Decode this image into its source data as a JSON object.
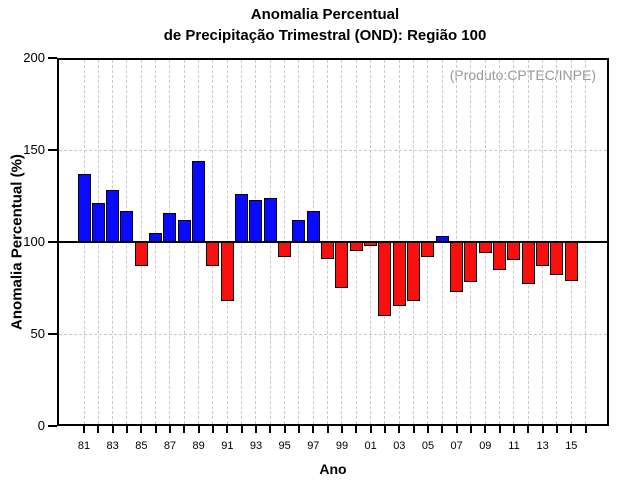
{
  "header": {
    "title_line1": "Anomalia Percentual",
    "title_line2": "de Precipitação Trimestral (OND): Região 100"
  },
  "chart_data": {
    "type": "bar",
    "title": "Anomalia Percentual de Precipitação Trimestral (OND): Região 100",
    "xlabel": "Ano",
    "ylabel": "Anomalia Percentual (%)",
    "annotation": "(Produto:CPTEC/INPE)",
    "ylim": [
      0,
      200
    ],
    "yticks": [
      0,
      50,
      100,
      150,
      200
    ],
    "baseline": 100,
    "dashed_gridlines_y": [
      50,
      150
    ],
    "grid": "dashed vertical line every year, dashed horizontal at 50 and 150, solid line at 100",
    "legend_position": "none",
    "x_label_step": 2,
    "categories": [
      "81",
      "82",
      "83",
      "84",
      "85",
      "86",
      "87",
      "88",
      "89",
      "90",
      "91",
      "92",
      "93",
      "94",
      "95",
      "96",
      "97",
      "98",
      "99",
      "00",
      "01",
      "02",
      "03",
      "04",
      "05",
      "06",
      "07",
      "08",
      "09",
      "10",
      "11",
      "12",
      "13",
      "14",
      "15"
    ],
    "values": [
      137,
      121,
      128,
      117,
      87,
      105,
      116,
      112,
      144,
      87,
      68,
      126,
      123,
      124,
      92,
      112,
      117,
      91,
      75,
      95,
      98,
      60,
      65,
      68,
      92,
      103,
      73,
      78,
      94,
      85,
      90,
      77,
      87,
      82,
      79
    ],
    "color_rule": "blue if value >= 100 (bar drawn up from 100), red if value < 100 (bar drawn down from 100)",
    "positive_color": "#0a0aff",
    "negative_color": "#fa0f0f",
    "gridline_color": "#c9c9c9",
    "axis_color": "#000000",
    "annotation_color": "#999999"
  }
}
